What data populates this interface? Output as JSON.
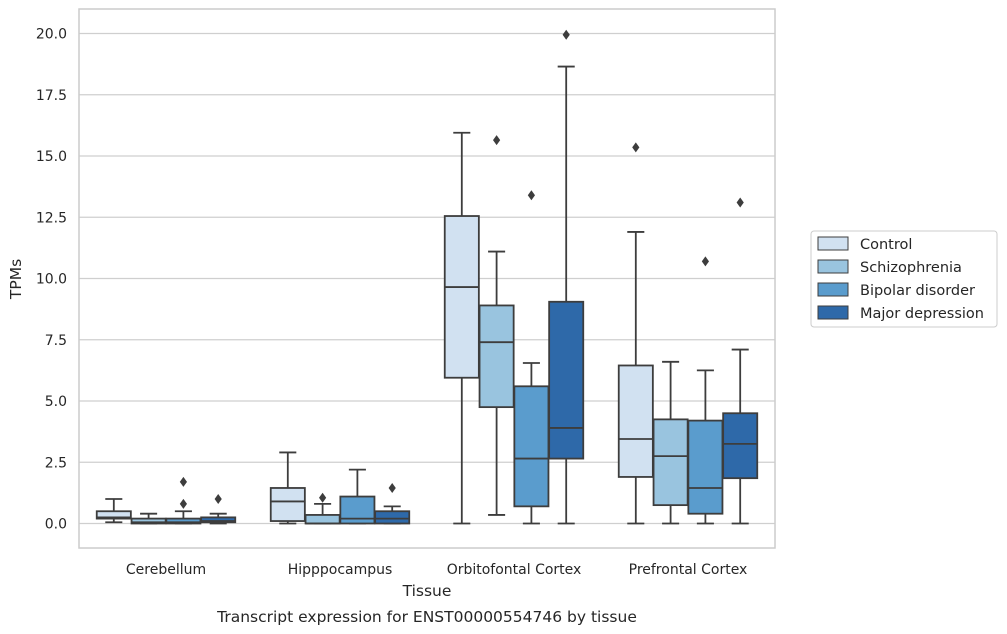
{
  "chart_data": {
    "type": "box",
    "title": "",
    "caption": "Transcript expression for ENST00000554746 by tissue",
    "xlabel": "Tissue",
    "ylabel": "TPMs",
    "ylim": [
      -1.0,
      21.0
    ],
    "yticks": [
      0.0,
      2.5,
      5.0,
      7.5,
      10.0,
      12.5,
      15.0,
      17.5,
      20.0
    ],
    "ytick_labels": [
      "0.0",
      "2.5",
      "5.0",
      "7.5",
      "10.0",
      "12.5",
      "15.0",
      "17.5",
      "20.0"
    ],
    "grid": "horizontal",
    "legend_position": "right, outside",
    "categories": [
      "Cerebellum",
      "Hipppocampus",
      "Orbitofontal Cortex",
      "Prefrontal Cortex"
    ],
    "series": [
      {
        "name": "Control",
        "color": "#d1e1f1",
        "boxes": [
          {
            "whisker_low": 0.05,
            "q1": 0.2,
            "median": 0.25,
            "q3": 0.5,
            "whisker_high": 1.0,
            "outliers": []
          },
          {
            "whisker_low": 0.0,
            "q1": 0.1,
            "median": 0.9,
            "q3": 1.45,
            "whisker_high": 2.9,
            "outliers": []
          },
          {
            "whisker_low": 0.0,
            "q1": 5.95,
            "median": 9.65,
            "q3": 12.55,
            "whisker_high": 15.95,
            "outliers": []
          },
          {
            "whisker_low": 0.0,
            "q1": 1.9,
            "median": 3.45,
            "q3": 6.45,
            "whisker_high": 11.9,
            "outliers": [
              15.35
            ]
          }
        ]
      },
      {
        "name": "Schizophrenia",
        "color": "#99c4df",
        "boxes": [
          {
            "whisker_low": 0.0,
            "q1": 0.0,
            "median": 0.05,
            "q3": 0.2,
            "whisker_high": 0.4,
            "outliers": []
          },
          {
            "whisker_low": 0.0,
            "q1": 0.0,
            "median": 0.0,
            "q3": 0.35,
            "whisker_high": 0.8,
            "outliers": [
              1.05
            ]
          },
          {
            "whisker_low": 0.35,
            "q1": 4.75,
            "median": 7.4,
            "q3": 8.9,
            "whisker_high": 11.1,
            "outliers": [
              15.65
            ]
          },
          {
            "whisker_low": 0.0,
            "q1": 0.75,
            "median": 2.75,
            "q3": 4.25,
            "whisker_high": 6.6,
            "outliers": []
          }
        ]
      },
      {
        "name": "Bipolar disorder",
        "color": "#5a9ccd",
        "boxes": [
          {
            "whisker_low": 0.0,
            "q1": 0.0,
            "median": 0.05,
            "q3": 0.2,
            "whisker_high": 0.5,
            "outliers": [
              0.8,
              1.7
            ]
          },
          {
            "whisker_low": 0.0,
            "q1": 0.0,
            "median": 0.2,
            "q3": 1.1,
            "whisker_high": 2.2,
            "outliers": []
          },
          {
            "whisker_low": 0.0,
            "q1": 0.7,
            "median": 2.65,
            "q3": 5.6,
            "whisker_high": 6.55,
            "outliers": [
              13.4
            ]
          },
          {
            "whisker_low": 0.0,
            "q1": 0.4,
            "median": 1.45,
            "q3": 4.2,
            "whisker_high": 6.25,
            "outliers": [
              10.7
            ]
          }
        ]
      },
      {
        "name": "Major depression",
        "color": "#2e69a9",
        "boxes": [
          {
            "whisker_low": 0.0,
            "q1": 0.05,
            "median": 0.1,
            "q3": 0.25,
            "whisker_high": 0.4,
            "outliers": [
              1.0
            ]
          },
          {
            "whisker_low": 0.0,
            "q1": 0.0,
            "median": 0.2,
            "q3": 0.5,
            "whisker_high": 0.7,
            "outliers": [
              1.45
            ]
          },
          {
            "whisker_low": 0.0,
            "q1": 2.65,
            "median": 3.9,
            "q3": 9.05,
            "whisker_high": 18.65,
            "outliers": [
              19.95
            ]
          },
          {
            "whisker_low": 0.0,
            "q1": 1.85,
            "median": 3.25,
            "q3": 4.5,
            "whisker_high": 7.1,
            "outliers": [
              13.1
            ]
          }
        ]
      }
    ]
  }
}
